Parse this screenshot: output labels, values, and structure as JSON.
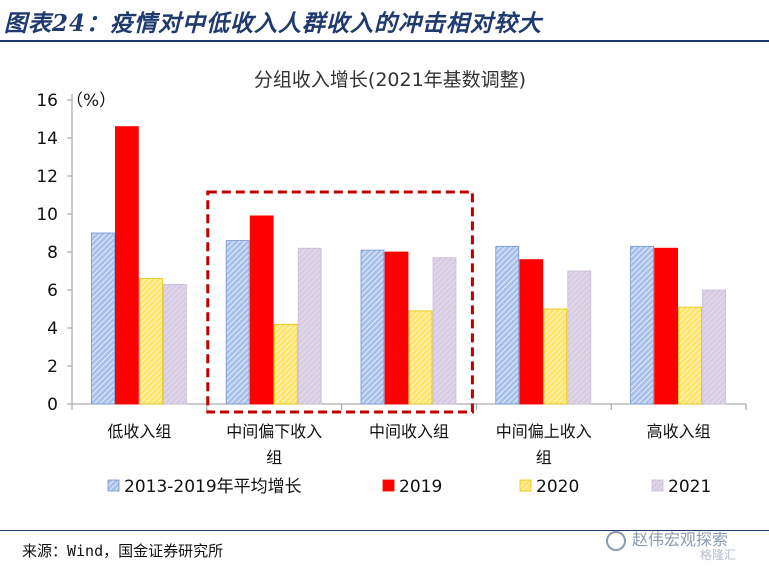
{
  "figure_title": "图表24：疫情对中低收入人群收入的冲击相对较大",
  "source": "来源：Wind，国金证券研究所",
  "watermark": "赵伟宏观探索",
  "watermark_sub": "格隆汇",
  "colors": {
    "series_2013_2019": "#a9c2ec",
    "series_2013_2019_stroke": "#6f93d2",
    "series_2019": "#ff0000",
    "series_2020": "#ffeb8a",
    "series_2020_stroke": "#e8c400",
    "series_2021": "#d7cce2",
    "highlight_box": "#c00000",
    "title_color": "#1f3a6e"
  },
  "chart_data": {
    "type": "bar",
    "title": "分组收入增长(2021年基数调整)",
    "unit_label": "（%）",
    "categories": [
      [
        "低收入组"
      ],
      [
        "中间偏下收入",
        "组"
      ],
      [
        "中间收入组"
      ],
      [
        "中间偏上收入",
        "组"
      ],
      [
        "高收入组"
      ]
    ],
    "series": [
      {
        "name": "2013-2019年平均增长",
        "values": [
          9.0,
          8.6,
          8.1,
          8.3,
          8.3
        ]
      },
      {
        "name": "2019",
        "values": [
          14.6,
          9.9,
          8.0,
          7.6,
          8.2
        ]
      },
      {
        "name": "2020",
        "values": [
          6.6,
          4.2,
          4.9,
          5.0,
          5.1
        ]
      },
      {
        "name": "2021",
        "values": [
          6.3,
          8.2,
          7.7,
          7.0,
          6.0
        ]
      }
    ],
    "ylim": [
      0,
      16
    ],
    "yticks": [
      0,
      2,
      4,
      6,
      8,
      10,
      12,
      14,
      16
    ],
    "grid": false,
    "legend": "bottom",
    "highlight_categories": [
      1,
      2
    ]
  }
}
